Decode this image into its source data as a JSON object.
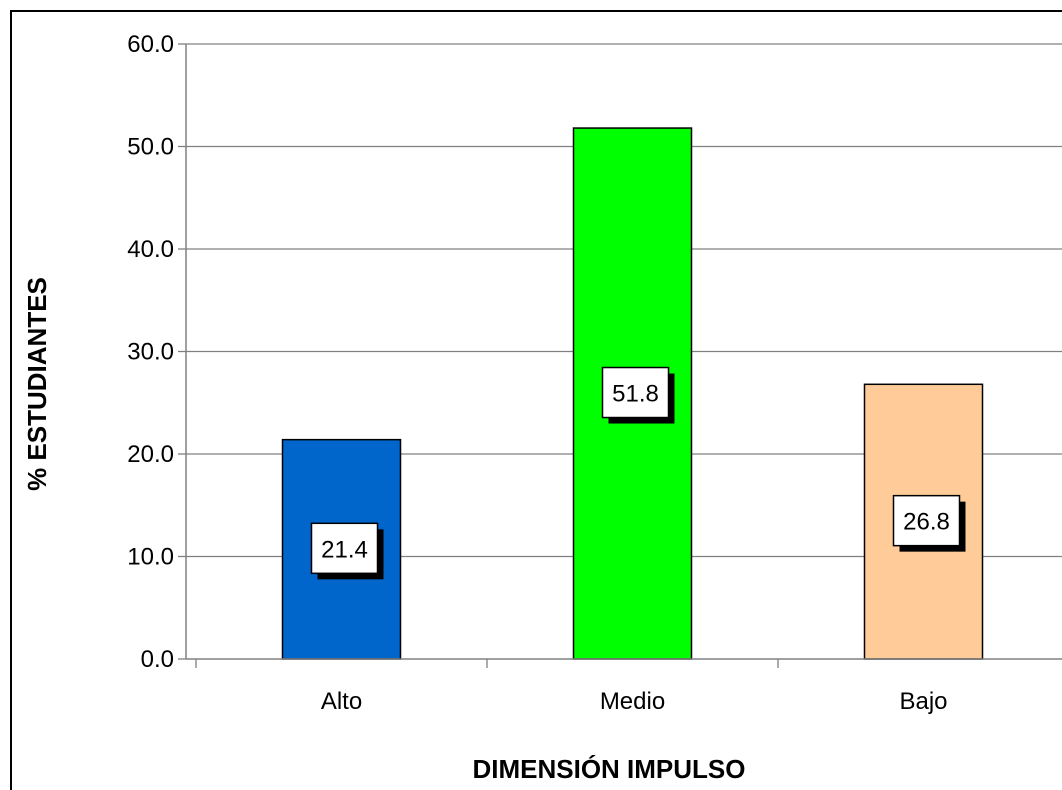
{
  "chart_data": {
    "type": "bar",
    "categories": [
      "Alto",
      "Medio",
      "Bajo"
    ],
    "values": [
      21.4,
      51.8,
      26.8
    ],
    "data_labels": [
      "21.4",
      "51.8",
      "26.8"
    ],
    "colors": [
      "#0066CC",
      "#00FF00",
      "#FFCC99"
    ],
    "xlabel": "DIMENSIÓN IMPULSO",
    "ylabel": "% ESTUDIANTES",
    "ylim": [
      0,
      60
    ],
    "yticks": [
      "0.0",
      "10.0",
      "20.0",
      "30.0",
      "40.0",
      "50.0",
      "60.0"
    ],
    "grid": true,
    "legend": "none"
  }
}
